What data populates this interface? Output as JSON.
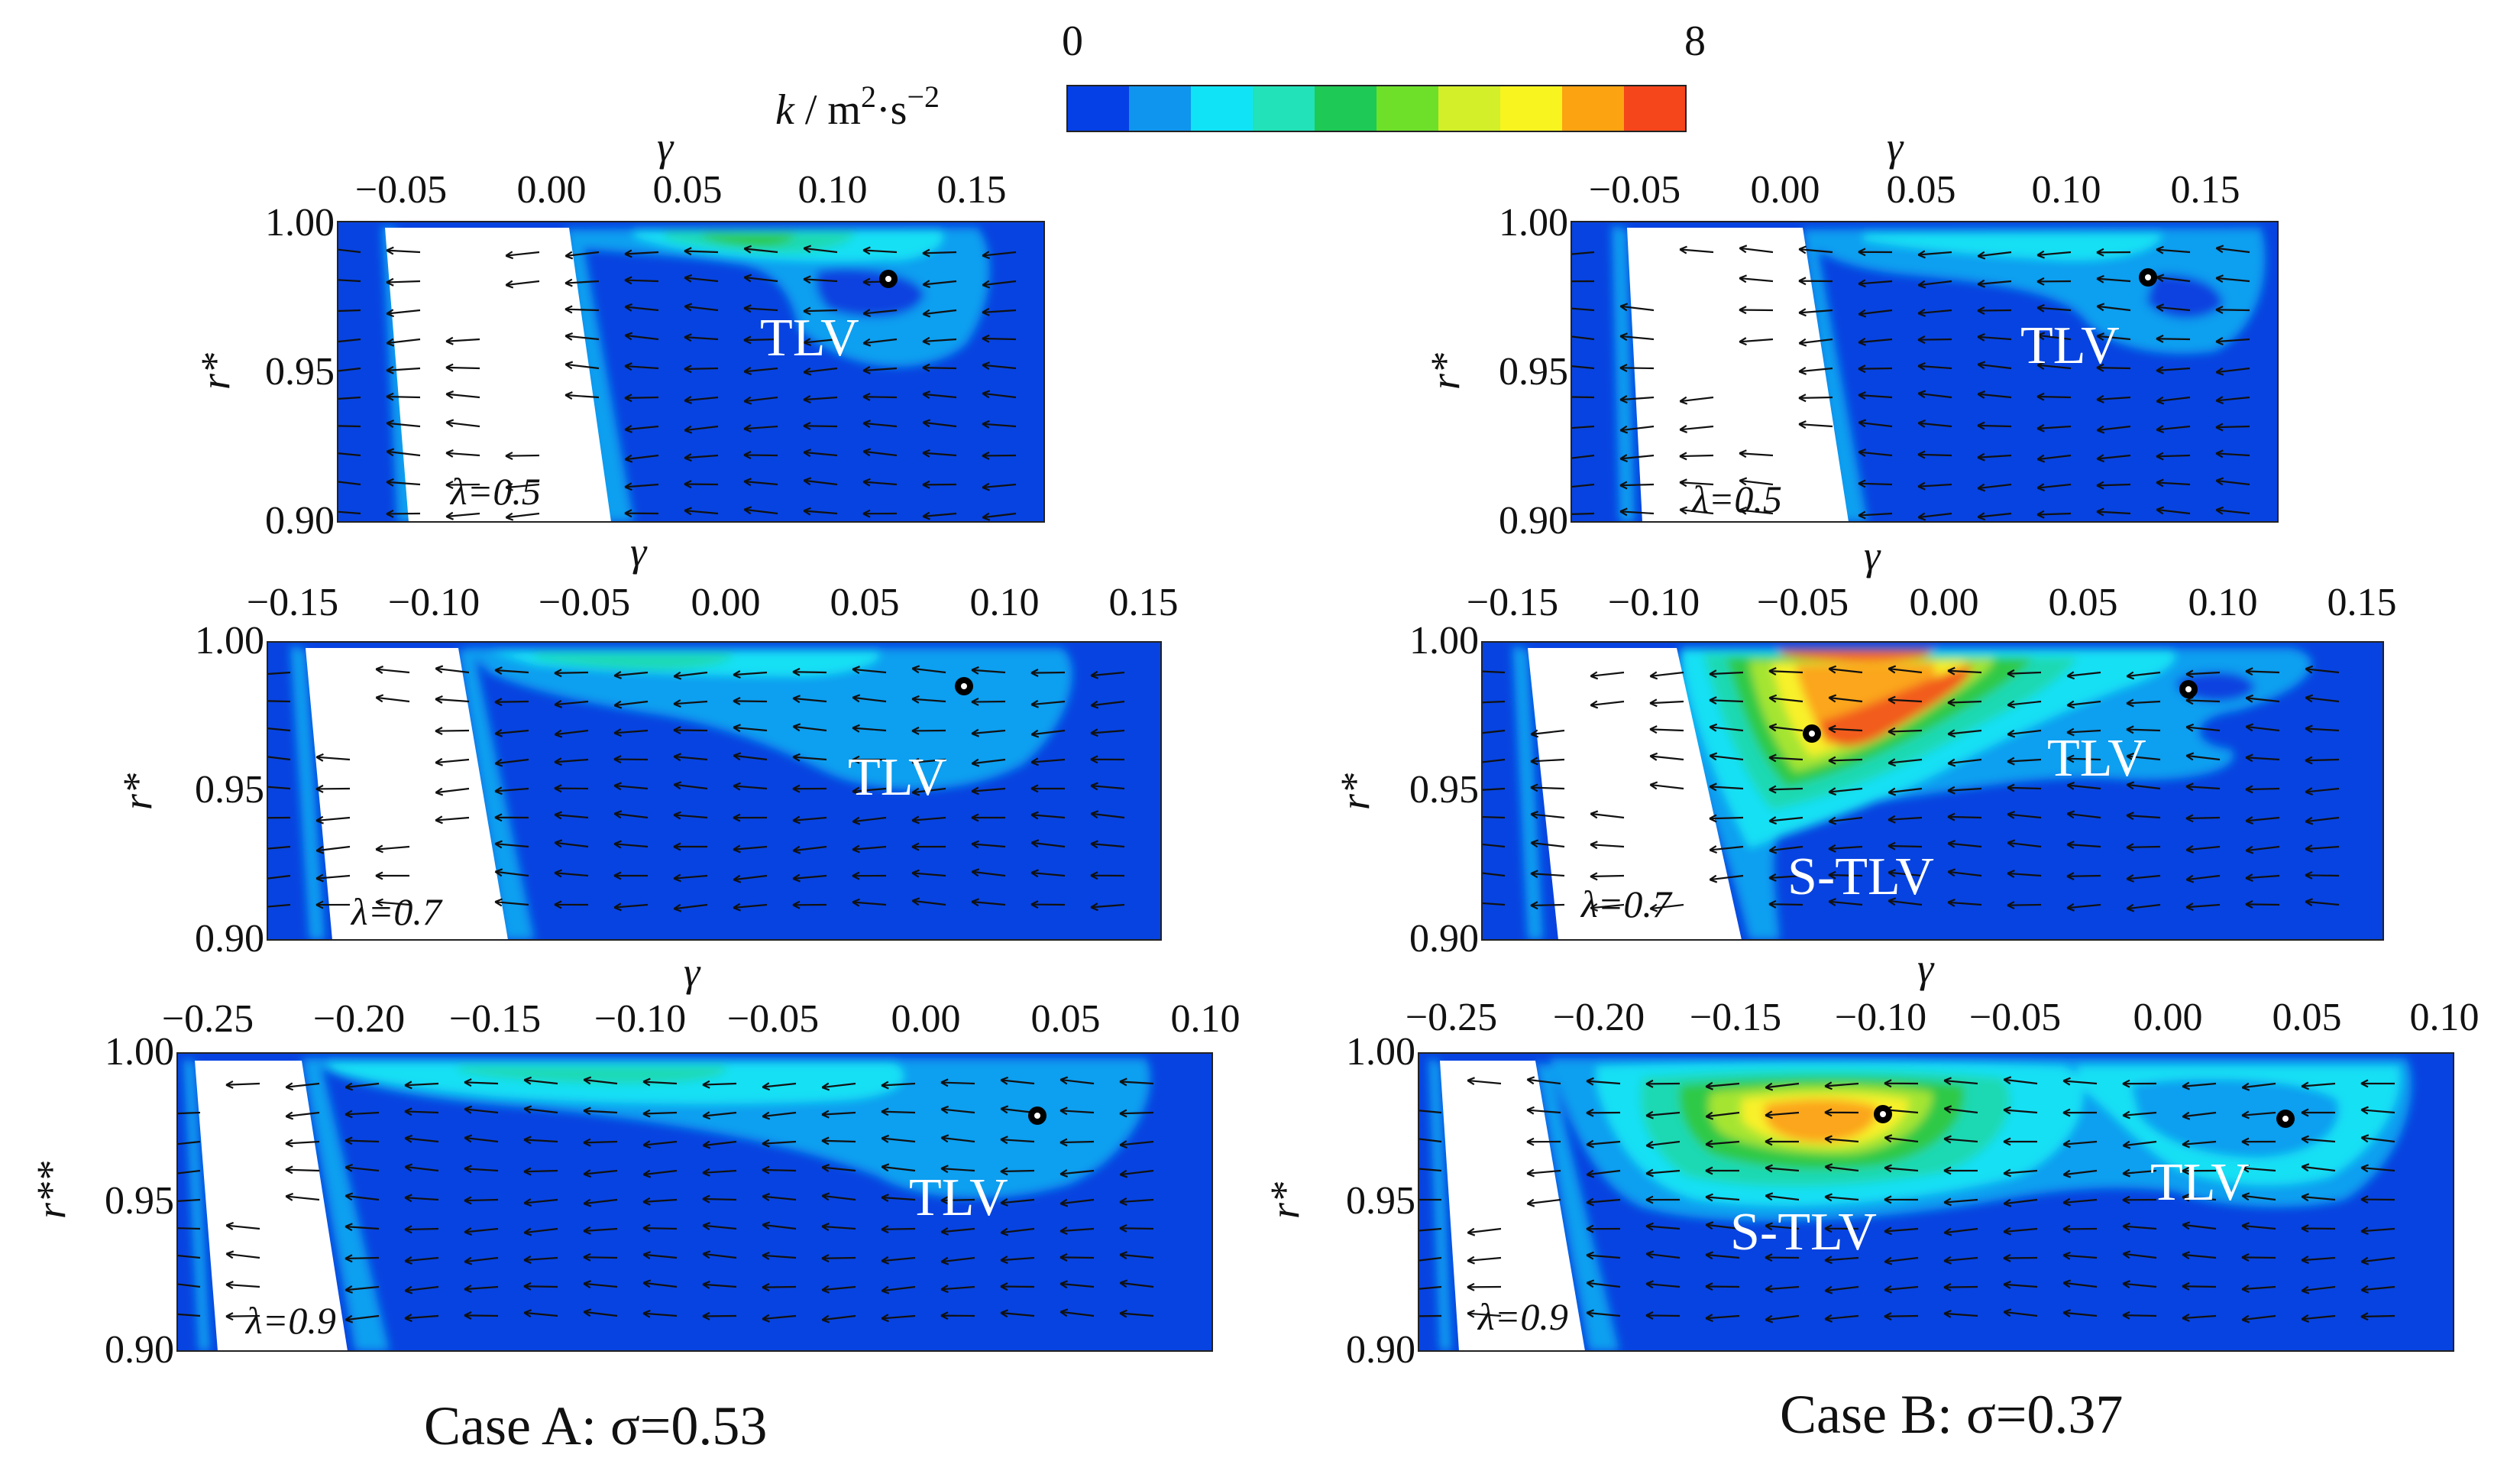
{
  "colorbar": {
    "min_label": "0",
    "max_label": "8",
    "label_main": "k",
    "label_units": " / m",
    "label_sq": "2",
    "label_dot": "·s",
    "label_exp": "−2",
    "colors": [
      "#0540e6",
      "#0f95ee",
      "#10e3f6",
      "#21e2b8",
      "#1ec955",
      "#6ee02a",
      "#d2ef2a",
      "#f7f420",
      "#fca312",
      "#f5451a"
    ]
  },
  "colors": {
    "field": "#0743e0",
    "light": "#0b9ff0",
    "cyan": "#12e0f4",
    "teal": "#1fd9b3",
    "green": "#2fc947",
    "lime": "#a5e531",
    "yellow": "#f8f12a",
    "orange": "#fba61b",
    "red": "#f25c1c",
    "blade": "#ffffff"
  },
  "panels": [
    {
      "id": "A1",
      "x_axis_label": "γ",
      "y_axis_label": "r*",
      "y_ticks": [
        "1.00",
        "0.95",
        "0.90"
      ],
      "x_ticks": [
        "−0.05",
        "0.00",
        "0.05",
        "0.10",
        "0.15"
      ],
      "lambda": "λ=0.5",
      "labels": [
        {
          "text": "TLV"
        }
      ]
    },
    {
      "id": "B1",
      "x_axis_label": "γ",
      "y_axis_label": "r*",
      "y_ticks": [
        "1.00",
        "0.95",
        "0.90"
      ],
      "x_ticks": [
        "−0.05",
        "0.00",
        "0.05",
        "0.10",
        "0.15"
      ],
      "lambda": "λ=0.5",
      "labels": [
        {
          "text": "TLV"
        }
      ]
    },
    {
      "id": "A2",
      "x_axis_label": "γ",
      "y_axis_label": "r*",
      "y_ticks": [
        "1.00",
        "0.95",
        "0.90"
      ],
      "x_ticks": [
        "−0.15",
        "−0.10",
        "−0.05",
        "0.00",
        "0.05",
        "0.10",
        "0.15"
      ],
      "lambda": "λ=0.7",
      "labels": [
        {
          "text": "TLV"
        }
      ]
    },
    {
      "id": "B2",
      "x_axis_label": "γ",
      "y_axis_label": "r*",
      "y_ticks": [
        "1.00",
        "0.95",
        "0.90"
      ],
      "x_ticks": [
        "−0.15",
        "−0.10",
        "−0.05",
        "0.00",
        "0.05",
        "0.10",
        "0.15"
      ],
      "lambda": "λ=0.7",
      "labels": [
        {
          "text": "TLV"
        },
        {
          "text": "S-TLV"
        }
      ]
    },
    {
      "id": "A3",
      "x_axis_label": "γ",
      "y_axis_label": "r**",
      "y_ticks": [
        "1.00",
        "0.95",
        "0.90"
      ],
      "x_ticks": [
        "−0.25",
        "−0.20",
        "−0.15",
        "−0.10",
        "−0.05",
        "0.00",
        "0.05",
        "0.10"
      ],
      "lambda": "λ=0.9",
      "labels": [
        {
          "text": "TLV"
        }
      ]
    },
    {
      "id": "B3",
      "x_axis_label": "γ",
      "y_axis_label": "r*",
      "y_ticks": [
        "1.00",
        "0.95",
        "0.90"
      ],
      "x_ticks": [
        "−0.25",
        "−0.20",
        "−0.15",
        "−0.10",
        "−0.05",
        "0.00",
        "0.05",
        "0.10"
      ],
      "lambda": "λ=0.9",
      "labels": [
        {
          "text": "S-TLV"
        },
        {
          "text": "TLV"
        }
      ]
    }
  ],
  "captions": {
    "case_a": "Case A: σ=0.53",
    "case_b": "Case B: σ=0.37"
  }
}
